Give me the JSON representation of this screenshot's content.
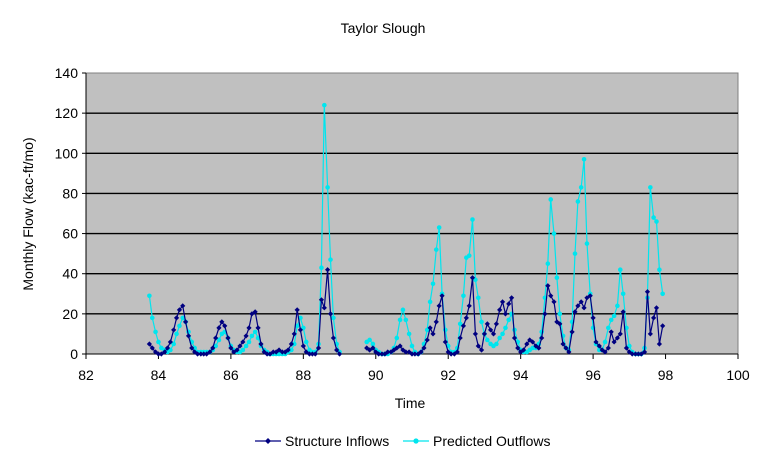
{
  "chart_data": {
    "type": "line",
    "title": "Taylor Slough",
    "xlabel": "Time",
    "ylabel": "Monthly Flow (kac-ft/mo)",
    "xlim": [
      82,
      100
    ],
    "ylim": [
      0,
      140
    ],
    "x_ticks": [
      82,
      84,
      86,
      88,
      90,
      92,
      94,
      96,
      98,
      100
    ],
    "y_ticks": [
      0,
      20,
      40,
      60,
      80,
      100,
      120,
      140
    ],
    "grid": "horizontal",
    "plot_background": "#c0c0c0",
    "legend_position": "bottom",
    "series": [
      {
        "name": "Structure Inflows",
        "color": "#000080",
        "marker": "diamond",
        "points": [
          [
            83.75,
            5
          ],
          [
            83.83,
            3
          ],
          [
            83.92,
            1
          ],
          [
            84.0,
            0
          ],
          [
            84.08,
            0
          ],
          [
            84.17,
            1
          ],
          [
            84.25,
            3
          ],
          [
            84.33,
            6
          ],
          [
            84.42,
            12
          ],
          [
            84.5,
            18
          ],
          [
            84.58,
            22
          ],
          [
            84.67,
            24
          ],
          [
            84.75,
            16
          ],
          [
            84.83,
            9
          ],
          [
            84.92,
            3
          ],
          [
            85.0,
            1
          ],
          [
            85.08,
            0
          ],
          [
            85.17,
            0
          ],
          [
            85.25,
            0
          ],
          [
            85.33,
            0
          ],
          [
            85.42,
            1
          ],
          [
            85.5,
            3
          ],
          [
            85.58,
            8
          ],
          [
            85.67,
            13
          ],
          [
            85.75,
            16
          ],
          [
            85.83,
            14
          ],
          [
            85.92,
            8
          ],
          [
            86.0,
            3
          ],
          [
            86.08,
            1
          ],
          [
            86.17,
            2
          ],
          [
            86.25,
            4
          ],
          [
            86.33,
            6
          ],
          [
            86.42,
            9
          ],
          [
            86.5,
            13
          ],
          [
            86.58,
            20
          ],
          [
            86.67,
            21
          ],
          [
            86.75,
            13
          ],
          [
            86.83,
            5
          ],
          [
            86.92,
            1
          ],
          [
            87.0,
            0
          ],
          [
            87.08,
            0
          ],
          [
            87.17,
            1
          ],
          [
            87.25,
            1
          ],
          [
            87.33,
            2
          ],
          [
            87.42,
            1
          ],
          [
            87.5,
            1
          ],
          [
            87.58,
            2
          ],
          [
            87.67,
            5
          ],
          [
            87.75,
            10
          ],
          [
            87.83,
            22
          ],
          [
            87.92,
            12
          ],
          [
            88.0,
            4
          ],
          [
            88.08,
            1
          ],
          [
            88.17,
            0
          ],
          [
            88.25,
            0
          ],
          [
            88.33,
            0
          ],
          [
            88.42,
            3
          ],
          [
            88.5,
            27
          ],
          [
            88.58,
            23
          ],
          [
            88.67,
            42
          ],
          [
            88.75,
            20
          ],
          [
            88.83,
            8
          ],
          [
            88.92,
            2
          ],
          [
            89.0,
            0
          ],
          [
            89.75,
            3
          ],
          [
            89.83,
            2
          ],
          [
            89.92,
            3
          ],
          [
            90.0,
            1
          ],
          [
            90.08,
            0
          ],
          [
            90.17,
            0
          ],
          [
            90.25,
            0
          ],
          [
            90.33,
            1
          ],
          [
            90.42,
            1
          ],
          [
            90.5,
            2
          ],
          [
            90.58,
            3
          ],
          [
            90.67,
            4
          ],
          [
            90.75,
            2
          ],
          [
            90.83,
            1
          ],
          [
            90.92,
            1
          ],
          [
            91.0,
            0
          ],
          [
            91.08,
            0
          ],
          [
            91.17,
            0
          ],
          [
            91.25,
            1
          ],
          [
            91.33,
            3
          ],
          [
            91.42,
            7
          ],
          [
            91.5,
            13
          ],
          [
            91.58,
            10
          ],
          [
            91.67,
            16
          ],
          [
            91.75,
            24
          ],
          [
            91.83,
            29
          ],
          [
            91.92,
            6
          ],
          [
            92.0,
            1
          ],
          [
            92.08,
            0
          ],
          [
            92.17,
            0
          ],
          [
            92.25,
            1
          ],
          [
            92.33,
            8
          ],
          [
            92.42,
            14
          ],
          [
            92.5,
            18
          ],
          [
            92.58,
            24
          ],
          [
            92.67,
            38
          ],
          [
            92.75,
            10
          ],
          [
            92.83,
            4
          ],
          [
            92.92,
            2
          ],
          [
            93.0,
            10
          ],
          [
            93.08,
            15
          ],
          [
            93.17,
            12
          ],
          [
            93.25,
            10
          ],
          [
            93.33,
            15
          ],
          [
            93.42,
            22
          ],
          [
            93.5,
            26
          ],
          [
            93.58,
            20
          ],
          [
            93.67,
            25
          ],
          [
            93.75,
            28
          ],
          [
            93.83,
            8
          ],
          [
            93.92,
            3
          ],
          [
            94.0,
            1
          ],
          [
            94.08,
            2
          ],
          [
            94.17,
            5
          ],
          [
            94.25,
            7
          ],
          [
            94.33,
            6
          ],
          [
            94.42,
            4
          ],
          [
            94.5,
            3
          ],
          [
            94.58,
            8
          ],
          [
            94.67,
            20
          ],
          [
            94.75,
            34
          ],
          [
            94.83,
            29
          ],
          [
            94.92,
            26
          ],
          [
            95.0,
            16
          ],
          [
            95.08,
            15
          ],
          [
            95.17,
            5
          ],
          [
            95.25,
            3
          ],
          [
            95.33,
            1
          ],
          [
            95.42,
            11
          ],
          [
            95.5,
            21
          ],
          [
            95.58,
            24
          ],
          [
            95.67,
            26
          ],
          [
            95.75,
            23
          ],
          [
            95.83,
            28
          ],
          [
            95.92,
            29
          ],
          [
            96.0,
            18
          ],
          [
            96.08,
            6
          ],
          [
            96.17,
            4
          ],
          [
            96.25,
            2
          ],
          [
            96.33,
            1
          ],
          [
            96.42,
            3
          ],
          [
            96.5,
            11
          ],
          [
            96.58,
            6
          ],
          [
            96.67,
            8
          ],
          [
            96.75,
            10
          ],
          [
            96.83,
            21
          ],
          [
            96.92,
            3
          ],
          [
            97.0,
            1
          ],
          [
            97.08,
            0
          ],
          [
            97.17,
            0
          ],
          [
            97.25,
            0
          ],
          [
            97.33,
            0
          ],
          [
            97.42,
            1
          ],
          [
            97.5,
            31
          ],
          [
            97.58,
            10
          ],
          [
            97.67,
            18
          ],
          [
            97.75,
            23
          ],
          [
            97.83,
            5
          ],
          [
            97.92,
            14
          ]
        ]
      },
      {
        "name": "Predicted Outflows",
        "color": "#00e5ee",
        "marker": "circle",
        "points": [
          [
            83.75,
            29
          ],
          [
            83.83,
            18
          ],
          [
            83.92,
            11
          ],
          [
            84.0,
            6
          ],
          [
            84.08,
            3
          ],
          [
            84.17,
            2
          ],
          [
            84.25,
            1
          ],
          [
            84.33,
            2
          ],
          [
            84.42,
            5
          ],
          [
            84.5,
            10
          ],
          [
            84.58,
            14
          ],
          [
            84.67,
            18
          ],
          [
            84.75,
            16
          ],
          [
            84.83,
            11
          ],
          [
            84.92,
            6
          ],
          [
            85.0,
            3
          ],
          [
            85.08,
            1
          ],
          [
            85.17,
            1
          ],
          [
            85.25,
            1
          ],
          [
            85.33,
            1
          ],
          [
            85.42,
            1
          ],
          [
            85.5,
            2
          ],
          [
            85.58,
            4
          ],
          [
            85.67,
            7
          ],
          [
            85.75,
            10
          ],
          [
            85.83,
            11
          ],
          [
            85.92,
            8
          ],
          [
            86.0,
            4
          ],
          [
            86.08,
            2
          ],
          [
            86.17,
            1
          ],
          [
            86.25,
            1
          ],
          [
            86.33,
            2
          ],
          [
            86.42,
            4
          ],
          [
            86.5,
            6
          ],
          [
            86.58,
            9
          ],
          [
            86.67,
            11
          ],
          [
            86.75,
            8
          ],
          [
            86.83,
            4
          ],
          [
            86.92,
            2
          ],
          [
            87.0,
            1
          ],
          [
            87.08,
            0
          ],
          [
            87.17,
            0
          ],
          [
            87.25,
            0
          ],
          [
            87.33,
            0
          ],
          [
            87.42,
            0
          ],
          [
            87.5,
            0
          ],
          [
            87.58,
            1
          ],
          [
            87.67,
            2
          ],
          [
            87.75,
            5
          ],
          [
            87.83,
            14
          ],
          [
            87.92,
            18
          ],
          [
            88.0,
            13
          ],
          [
            88.08,
            6
          ],
          [
            88.17,
            2
          ],
          [
            88.25,
            1
          ],
          [
            88.33,
            1
          ],
          [
            88.42,
            5
          ],
          [
            88.5,
            43
          ],
          [
            88.58,
            124
          ],
          [
            88.67,
            83
          ],
          [
            88.75,
            47
          ],
          [
            88.83,
            18
          ],
          [
            88.92,
            5
          ],
          [
            89.0,
            1
          ],
          [
            89.75,
            6
          ],
          [
            89.83,
            7
          ],
          [
            89.92,
            5
          ],
          [
            90.0,
            2
          ],
          [
            90.08,
            1
          ],
          [
            90.17,
            0
          ],
          [
            90.25,
            0
          ],
          [
            90.33,
            0
          ],
          [
            90.42,
            1
          ],
          [
            90.5,
            3
          ],
          [
            90.58,
            8
          ],
          [
            90.67,
            17
          ],
          [
            90.75,
            22
          ],
          [
            90.83,
            17
          ],
          [
            90.92,
            10
          ],
          [
            91.0,
            4
          ],
          [
            91.08,
            1
          ],
          [
            91.17,
            0
          ],
          [
            91.25,
            1
          ],
          [
            91.33,
            5
          ],
          [
            91.42,
            12
          ],
          [
            91.5,
            26
          ],
          [
            91.58,
            35
          ],
          [
            91.67,
            52
          ],
          [
            91.75,
            63
          ],
          [
            91.83,
            30
          ],
          [
            91.92,
            12
          ],
          [
            92.0,
            4
          ],
          [
            92.08,
            1
          ],
          [
            92.17,
            1
          ],
          [
            92.25,
            3
          ],
          [
            92.33,
            15
          ],
          [
            92.42,
            29
          ],
          [
            92.5,
            48
          ],
          [
            92.58,
            49
          ],
          [
            92.67,
            67
          ],
          [
            92.75,
            37
          ],
          [
            92.83,
            28
          ],
          [
            92.92,
            16
          ],
          [
            93.0,
            10
          ],
          [
            93.08,
            7
          ],
          [
            93.17,
            5
          ],
          [
            93.25,
            4
          ],
          [
            93.33,
            5
          ],
          [
            93.42,
            8
          ],
          [
            93.5,
            10
          ],
          [
            93.58,
            13
          ],
          [
            93.67,
            17
          ],
          [
            93.75,
            20
          ],
          [
            93.83,
            12
          ],
          [
            93.92,
            6
          ],
          [
            94.0,
            2
          ],
          [
            94.08,
            1
          ],
          [
            94.17,
            1
          ],
          [
            94.25,
            2
          ],
          [
            94.33,
            3
          ],
          [
            94.42,
            3
          ],
          [
            94.5,
            5
          ],
          [
            94.58,
            11
          ],
          [
            94.67,
            28
          ],
          [
            94.75,
            45
          ],
          [
            94.83,
            77
          ],
          [
            94.92,
            60
          ],
          [
            95.0,
            38
          ],
          [
            95.08,
            20
          ],
          [
            95.17,
            9
          ],
          [
            95.25,
            3
          ],
          [
            95.33,
            2
          ],
          [
            95.42,
            16
          ],
          [
            95.5,
            50
          ],
          [
            95.58,
            76
          ],
          [
            95.67,
            83
          ],
          [
            95.75,
            97
          ],
          [
            95.83,
            55
          ],
          [
            95.92,
            30
          ],
          [
            96.0,
            13
          ],
          [
            96.08,
            5
          ],
          [
            96.17,
            2
          ],
          [
            96.25,
            2
          ],
          [
            96.33,
            6
          ],
          [
            96.42,
            13
          ],
          [
            96.5,
            17
          ],
          [
            96.58,
            19
          ],
          [
            96.67,
            24
          ],
          [
            96.75,
            42
          ],
          [
            96.83,
            30
          ],
          [
            96.92,
            13
          ],
          [
            97.0,
            4
          ],
          [
            97.08,
            1
          ],
          [
            97.17,
            0
          ],
          [
            97.25,
            0
          ],
          [
            97.33,
            0
          ],
          [
            97.42,
            3
          ],
          [
            97.5,
            28
          ],
          [
            97.58,
            83
          ],
          [
            97.67,
            68
          ],
          [
            97.75,
            66
          ],
          [
            97.83,
            42
          ],
          [
            97.92,
            30
          ]
        ]
      }
    ]
  }
}
